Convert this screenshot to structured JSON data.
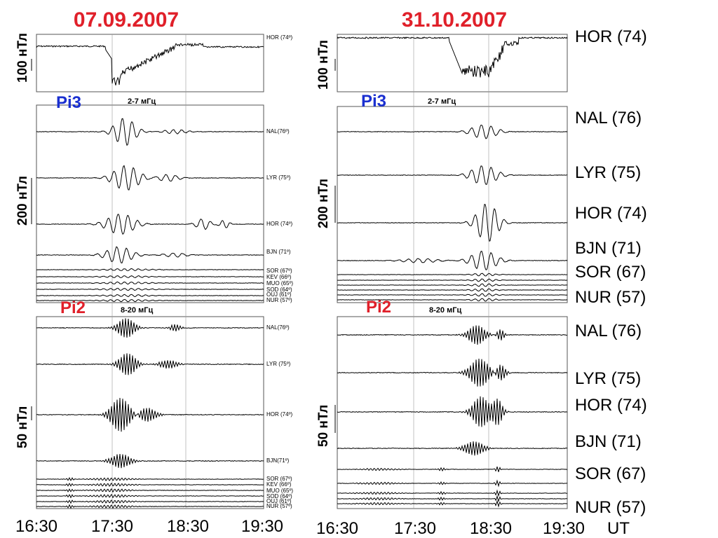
{
  "chart_data": [
    {
      "type": "line",
      "title": "07.09.2007",
      "x_ticks": [
        "16:30",
        "17:30",
        "18:30",
        "19:30"
      ],
      "panels": [
        {
          "band": "",
          "scale_label": "100 нТл",
          "series": [
            {
              "name": "HOR (74º)"
            }
          ]
        },
        {
          "band_label": "Pi3",
          "band": "2-7 мГц",
          "scale_label": "200 нТл",
          "series": [
            {
              "name": "NAL(76º)"
            },
            {
              "name": "LYR (75º)"
            },
            {
              "name": "HOR (74º)"
            },
            {
              "name": "BJN (71º)"
            },
            {
              "name": "SOR (67º)"
            },
            {
              "name": "KEV (66º)"
            },
            {
              "name": "MUO (65º)"
            },
            {
              "name": "SOD (64º)"
            },
            {
              "name": "OUJ (61º)"
            },
            {
              "name": "NUR (57º)"
            }
          ]
        },
        {
          "band_label": "Pi2",
          "band": "8-20 мГц",
          "scale_label": "50 нТл",
          "series": [
            {
              "name": "NAL(76º)"
            },
            {
              "name": "LYR (75º)"
            },
            {
              "name": "HOR (74º)"
            },
            {
              "name": "BJN(71º)"
            },
            {
              "name": "SOR (67º)"
            },
            {
              "name": "KEV (66º)"
            },
            {
              "name": "MUO (65º)"
            },
            {
              "name": "SOD (64º)"
            },
            {
              "name": "OUJ (61º)"
            },
            {
              "name": "NUR (57º)"
            }
          ]
        }
      ]
    },
    {
      "type": "line",
      "title": "31.10.2007",
      "x_ticks": [
        "16:30",
        "17:30",
        "18:30",
        "19:30"
      ],
      "x_unit": "UT",
      "panels": [
        {
          "band": "",
          "scale_label": "100 нТл",
          "series": [
            {
              "name": "HOR (74)"
            }
          ]
        },
        {
          "band_label": "Pi3",
          "band": "2-7 мГц",
          "scale_label": "200 нТл",
          "series": [
            {
              "name": "NAL (76)"
            },
            {
              "name": "LYR (75)"
            },
            {
              "name": "HOR (74)"
            },
            {
              "name": "BJN (71)"
            },
            {
              "name": "SOR (67)"
            },
            {
              "name": "NUR (57)"
            }
          ]
        },
        {
          "band_label": "Pi2",
          "band": "8-20 мГц",
          "scale_label": "50 нТл",
          "series": [
            {
              "name": "NAL (76)"
            },
            {
              "name": "LYR (75)"
            },
            {
              "name": "HOR (74)"
            },
            {
              "name": "BJN (71)"
            },
            {
              "name": "SOR (67)"
            },
            {
              "name": "NUR (57)"
            }
          ]
        }
      ]
    }
  ]
}
